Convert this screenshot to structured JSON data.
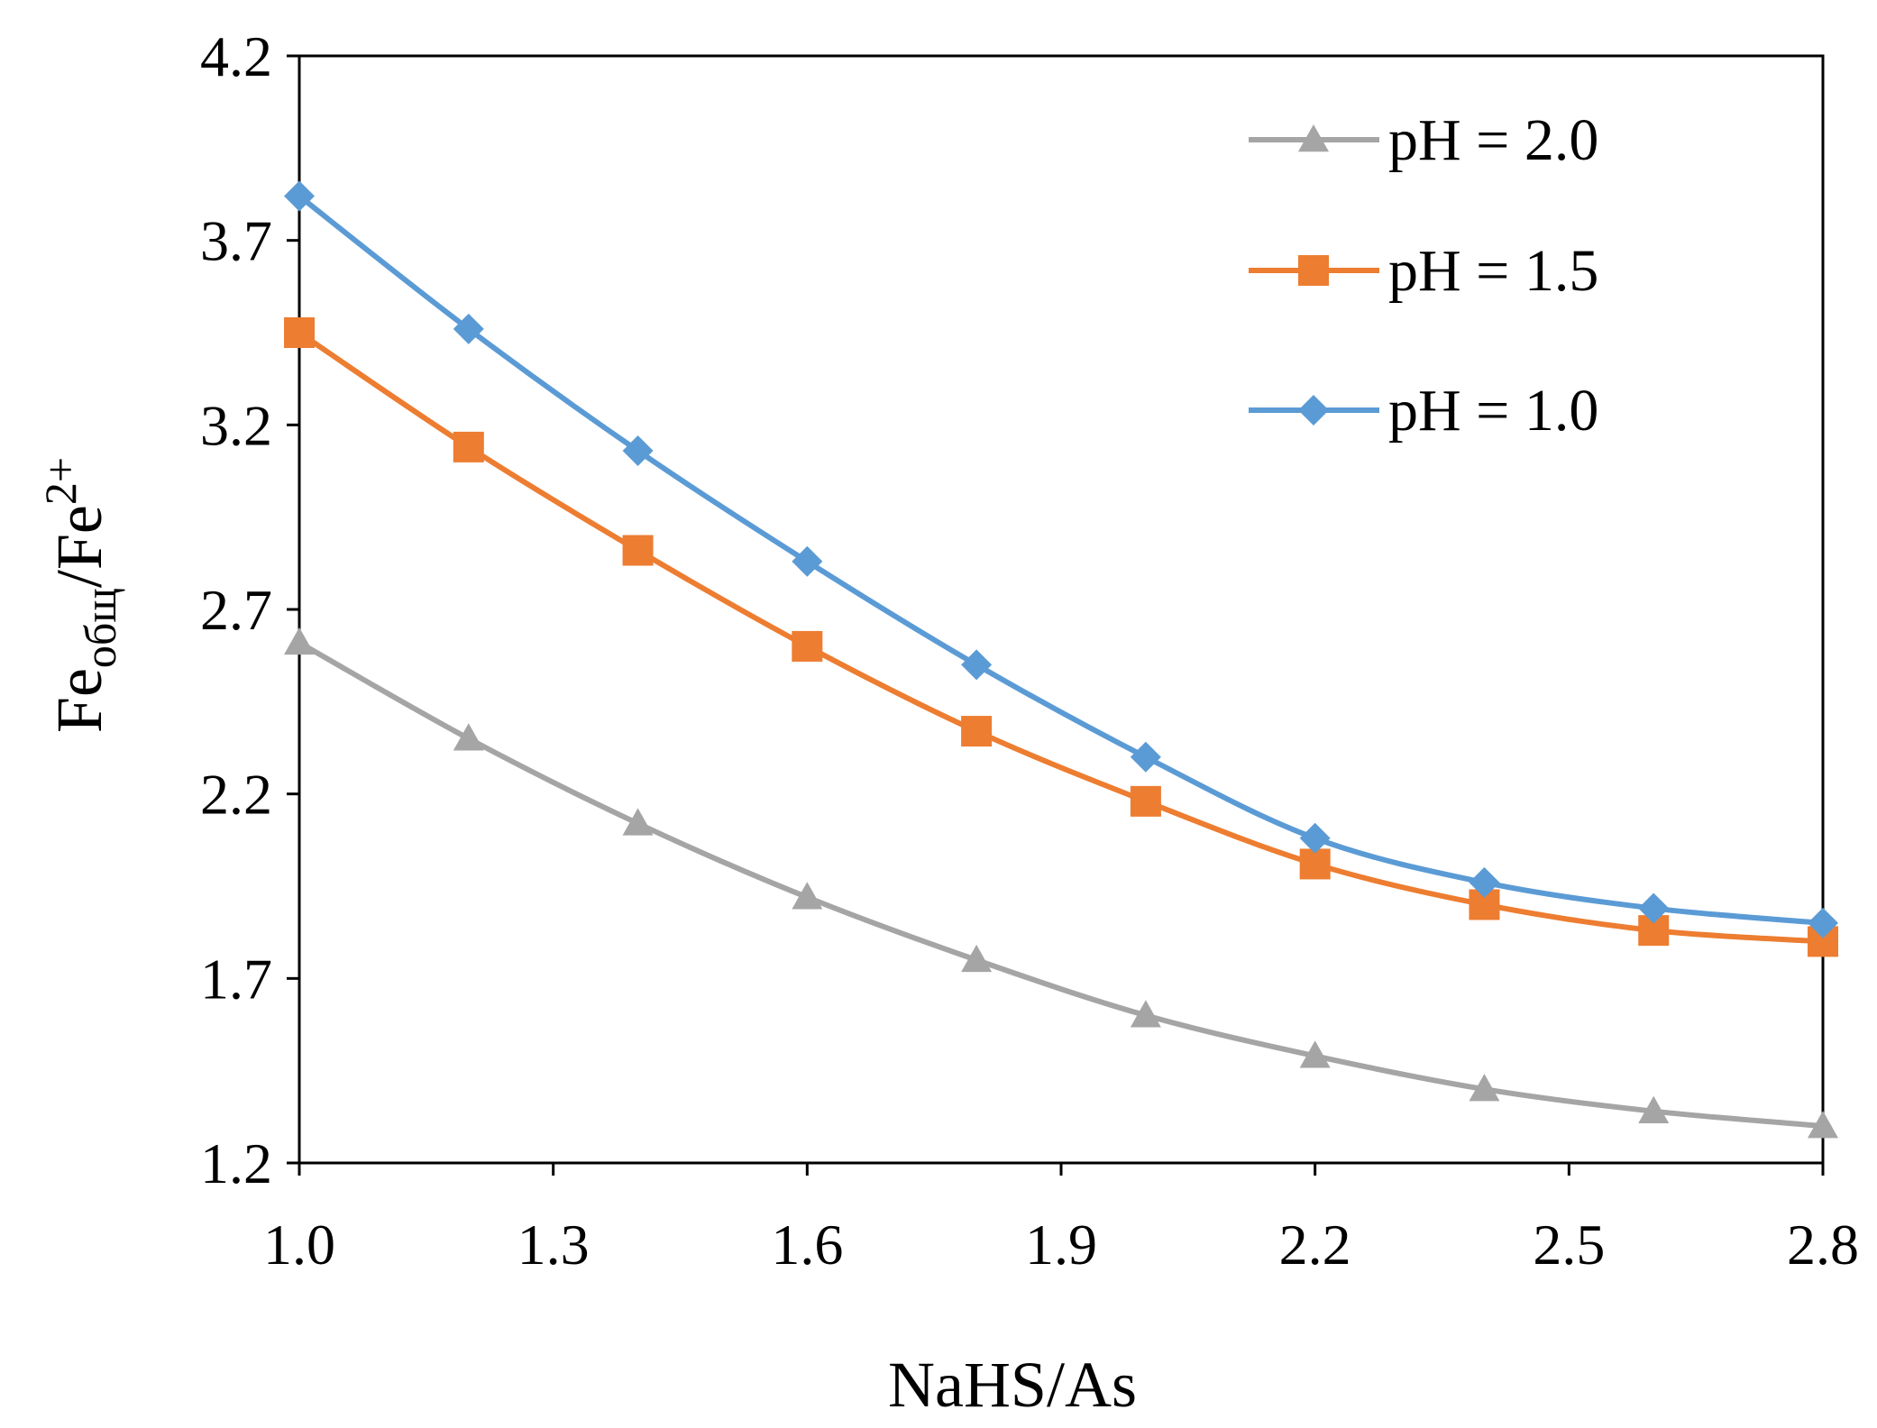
{
  "chart_data": {
    "type": "line",
    "title": "",
    "xlabel": "NaHS/As",
    "ylabel": {
      "base": "Fe",
      "sub": "общ",
      "mid": "/Fe",
      "sup": "2+"
    },
    "xlim": [
      1.0,
      2.8
    ],
    "ylim": [
      1.2,
      4.2
    ],
    "x_ticks": [
      "1.0",
      "1.3",
      "1.6",
      "1.9",
      "2.2",
      "2.5",
      "2.8"
    ],
    "y_ticks": [
      "1.2",
      "1.7",
      "2.2",
      "2.7",
      "3.2",
      "3.7",
      "4.2"
    ],
    "x": [
      1.0,
      1.2,
      1.4,
      1.6,
      1.8,
      2.0,
      2.2,
      2.4,
      2.6,
      2.8
    ],
    "grid": false,
    "legend_position": "top-right",
    "series": [
      {
        "name": "pH = 2.0",
        "color": "#a5a5a5",
        "marker": "triangle",
        "values": [
          2.61,
          2.35,
          2.12,
          1.92,
          1.75,
          1.6,
          1.49,
          1.4,
          1.34,
          1.3
        ]
      },
      {
        "name": "pH = 1.5",
        "color": "#ed7d31",
        "marker": "square",
        "values": [
          3.45,
          3.14,
          2.86,
          2.6,
          2.37,
          2.18,
          2.01,
          1.9,
          1.83,
          1.8
        ]
      },
      {
        "name": "pH = 1.0",
        "color": "#5b9bd5",
        "marker": "diamond",
        "values": [
          3.82,
          3.46,
          3.13,
          2.83,
          2.55,
          2.3,
          2.08,
          1.96,
          1.89,
          1.85
        ]
      }
    ]
  }
}
